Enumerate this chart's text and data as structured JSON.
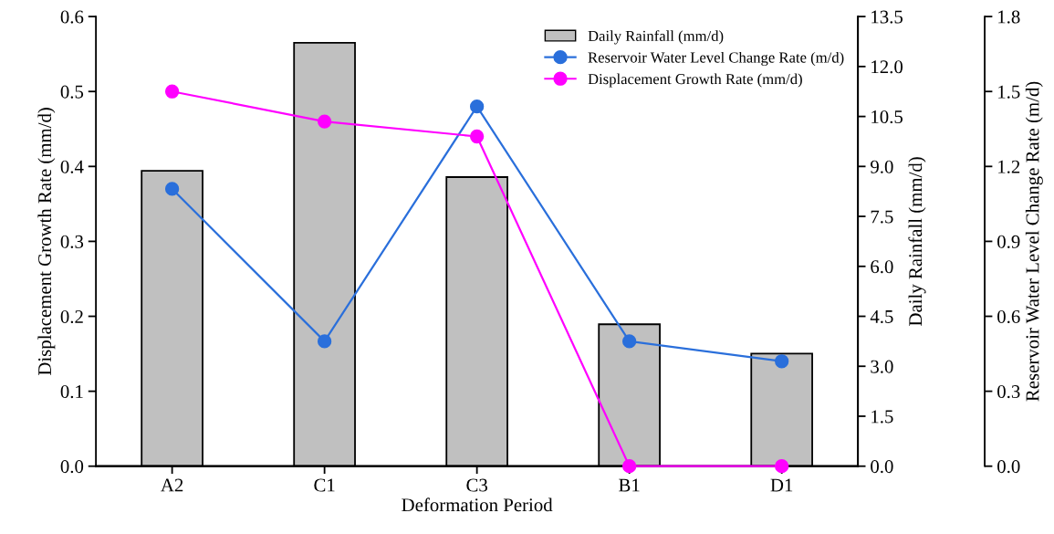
{
  "chart_data": {
    "type": "line",
    "xlabel": "Deformation Period",
    "ylabel": "Displacement Growth Rate (mm/d)",
    "y2label": "Daily Rainfall (mm/d)",
    "y3label": "Reservoir Water Level Change Rate (m/d)",
    "categories": [
      "A2",
      "C1",
      "C3",
      "B1",
      "D1"
    ],
    "series": [
      {
        "name": "Daily Rainfall (mm/d)",
        "type": "bar",
        "axis": "y2",
        "color": "#c0c0c0",
        "values": [
          8.87,
          12.71,
          8.68,
          4.26,
          3.38
        ]
      },
      {
        "name": "Reservoir Water Level Change Rate (m/d)",
        "axis": "y3",
        "color": "#2a6fdb",
        "values": [
          1.11,
          0.5,
          1.44,
          0.5,
          0.42
        ]
      },
      {
        "name": "Displacement Growth Rate (mm/d)",
        "axis": "y",
        "color": "#ff00ff",
        "values": [
          0.5,
          0.46,
          0.44,
          0,
          0
        ]
      }
    ],
    "ylim": [
      0,
      0.6
    ],
    "yticks": [
      {
        "value": 0,
        "label": "0.0"
      },
      {
        "value": 0.1,
        "label": "0.1"
      },
      {
        "value": 0.2,
        "label": "0.2"
      },
      {
        "value": 0.3,
        "label": "0.3"
      },
      {
        "value": 0.4,
        "label": "0.4"
      },
      {
        "value": 0.5,
        "label": "0.5"
      },
      {
        "value": 0.6,
        "label": "0.6"
      }
    ],
    "y2lim": [
      0,
      13.5
    ],
    "y2ticks": [
      {
        "value": 0,
        "label": "0.0"
      },
      1.5,
      {
        "value": 3,
        "label": "3.0"
      },
      4.5,
      {
        "value": 6,
        "label": "6.0"
      },
      7.5,
      {
        "value": 9,
        "label": "9.0"
      },
      10.5,
      {
        "value": 12,
        "label": "12.0"
      },
      13.5
    ],
    "y3lim": [
      0,
      1.8
    ],
    "y3ticks": [
      {
        "value": 0,
        "label": "0.0"
      },
      0.3,
      0.6,
      0.9,
      1.2,
      1.5,
      1.8
    ],
    "marker": "circle",
    "legend": "top right",
    "grid": false
  }
}
